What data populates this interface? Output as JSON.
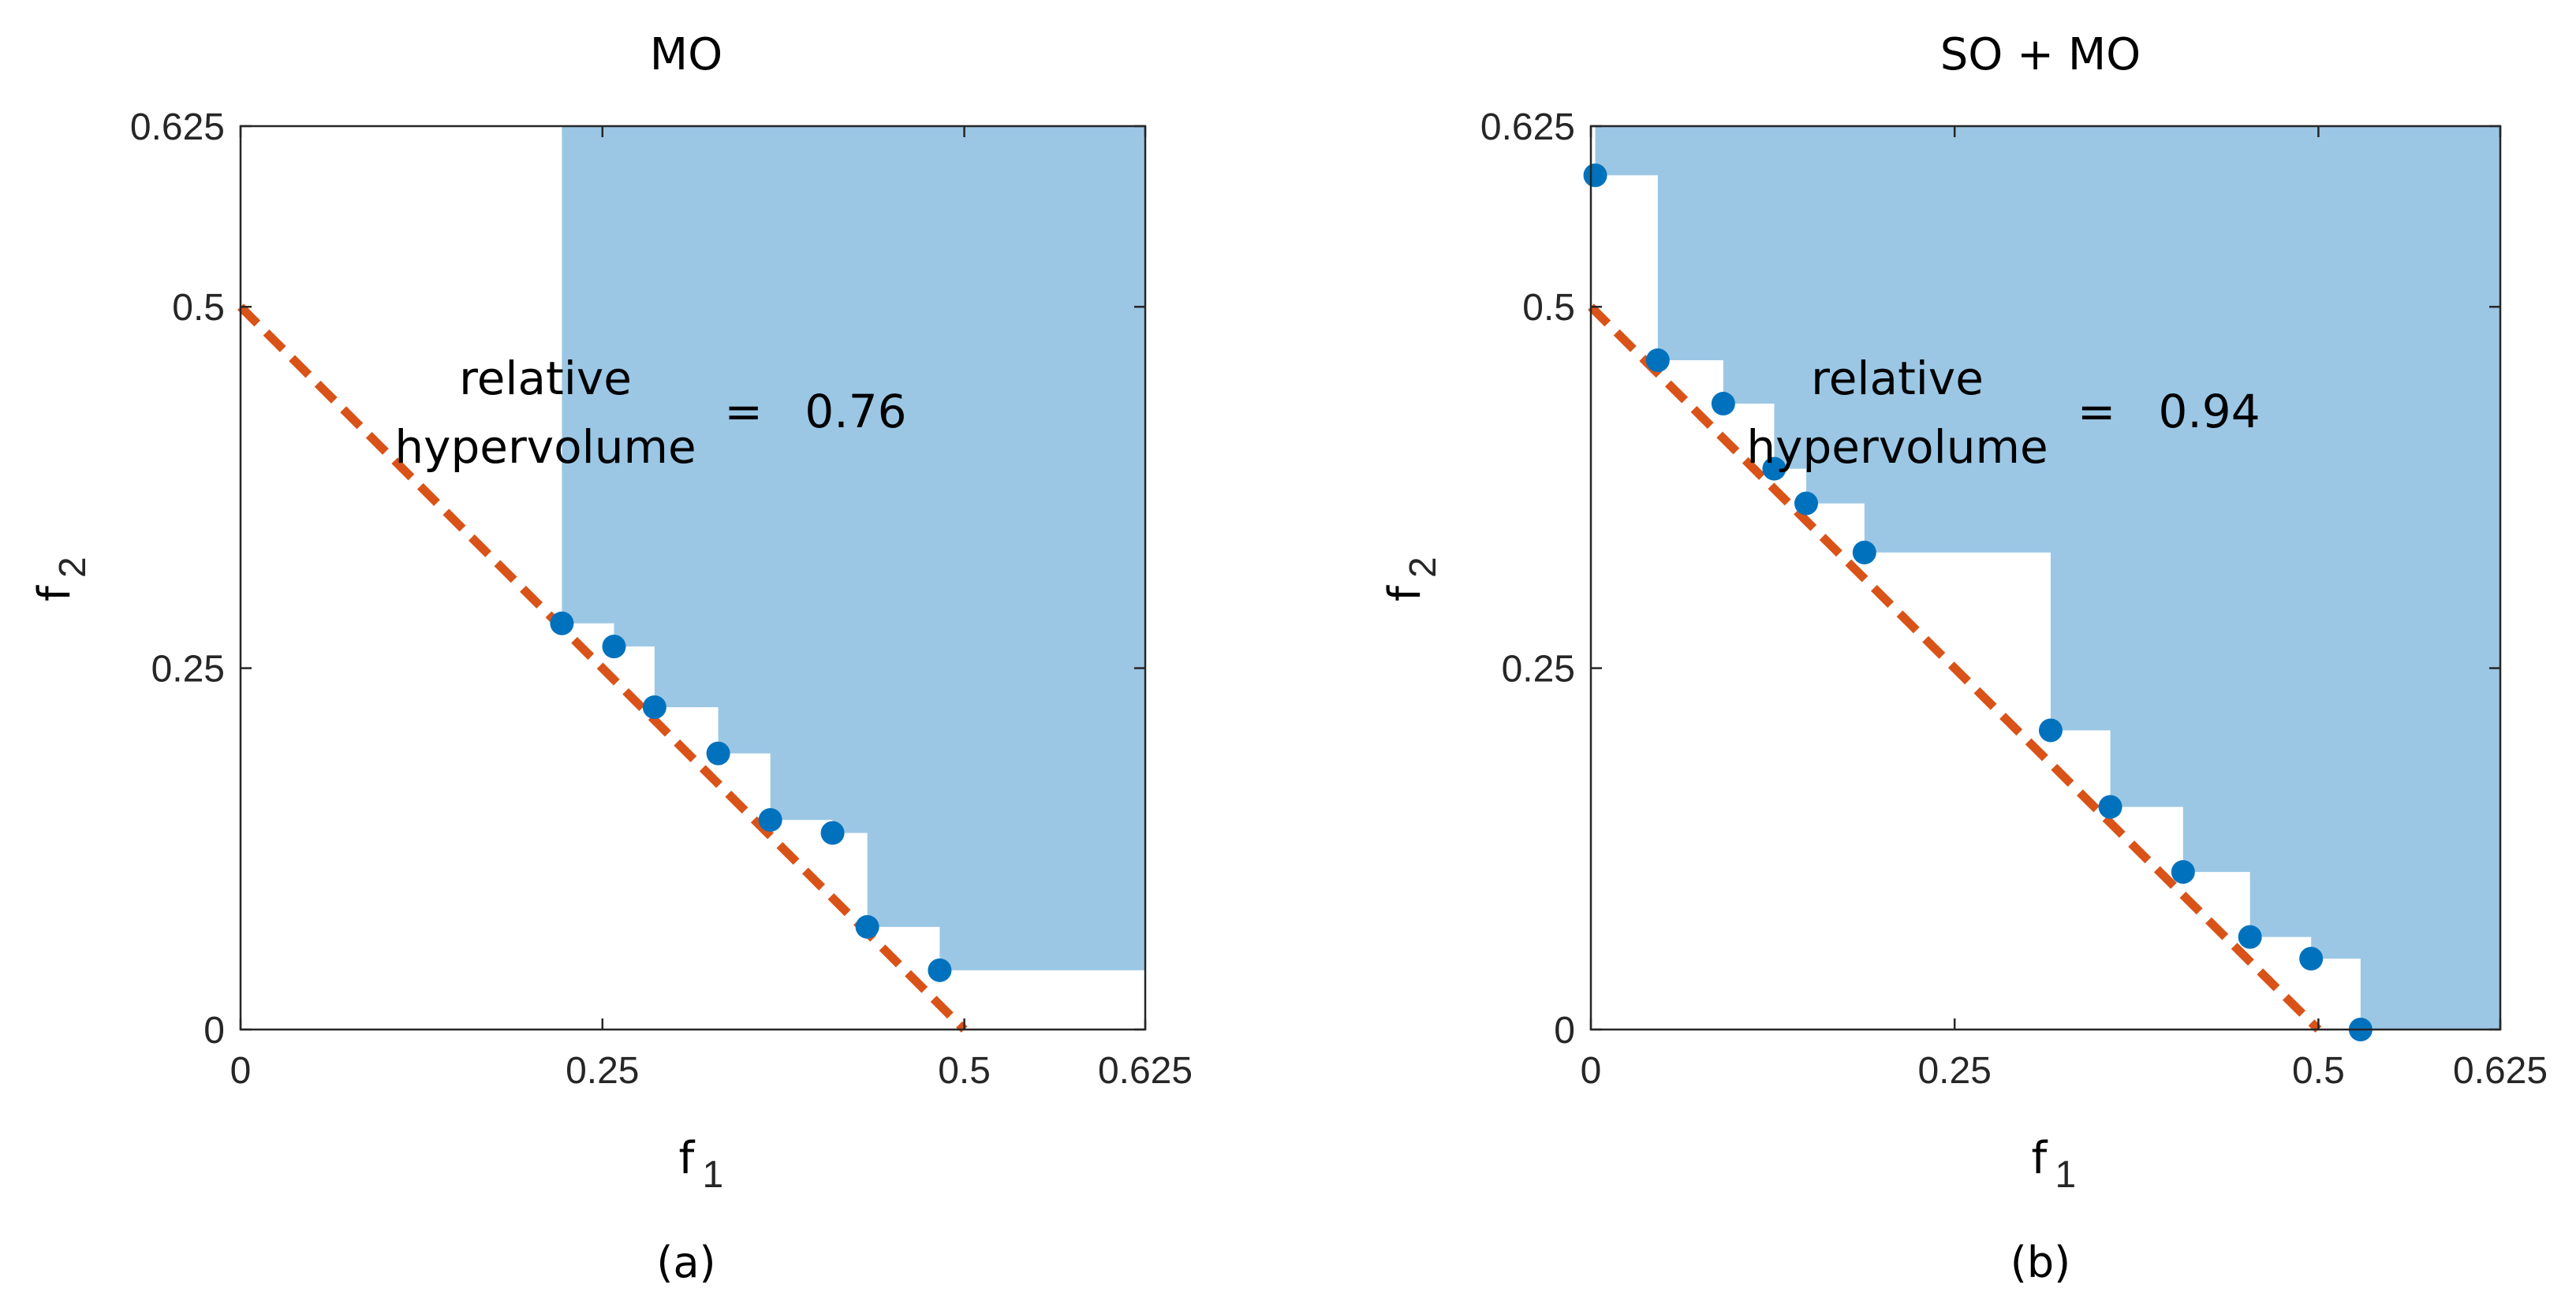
{
  "chart_data": [
    {
      "type": "scatter",
      "title": "MO",
      "xlabel": "f",
      "xlabel_sub": "1",
      "ylabel": "f",
      "ylabel_sub": "2",
      "xlim": [
        0,
        0.625
      ],
      "ylim": [
        0,
        0.625
      ],
      "xticks": [
        0,
        0.25,
        0.5,
        0.625
      ],
      "xtick_labels": [
        "0",
        "0.25",
        "0.5",
        "0.625"
      ],
      "yticks": [
        0,
        0.25,
        0.5,
        0.625
      ],
      "ytick_labels": [
        "0",
        "0.25",
        "0.5",
        "0.625"
      ],
      "reference_line": {
        "x": [
          0,
          0.5
        ],
        "y": [
          0.5,
          0
        ],
        "style": "dashed",
        "color": "#D95319"
      },
      "points": {
        "x": [
          0.222,
          0.258,
          0.286,
          0.33,
          0.366,
          0.409,
          0.433,
          0.483
        ],
        "y": [
          0.281,
          0.265,
          0.223,
          0.191,
          0.145,
          0.136,
          0.071,
          0.041
        ],
        "color": "#0072BD"
      },
      "hypervolume_region_color": "#9BC7E5",
      "annotation": {
        "line1": "relative",
        "line2": "hypervolume",
        "eq": "=",
        "value": "0.76"
      },
      "caption": "(a)"
    },
    {
      "type": "scatter",
      "title": "SO + MO",
      "xlabel": "f",
      "xlabel_sub": "1",
      "ylabel": "f",
      "ylabel_sub": "2",
      "xlim": [
        0,
        0.625
      ],
      "ylim": [
        0,
        0.625
      ],
      "xticks": [
        0,
        0.25,
        0.5,
        0.625
      ],
      "xtick_labels": [
        "0",
        "0.25",
        "0.5",
        "0.625"
      ],
      "yticks": [
        0,
        0.25,
        0.5,
        0.625
      ],
      "ytick_labels": [
        "0",
        "0.25",
        "0.5",
        "0.625"
      ],
      "reference_line": {
        "x": [
          0,
          0.5
        ],
        "y": [
          0.5,
          0
        ],
        "style": "dashed",
        "color": "#D95319"
      },
      "points": {
        "x": [
          0.003,
          0.046,
          0.091,
          0.126,
          0.148,
          0.188,
          0.316,
          0.357,
          0.407,
          0.453,
          0.495,
          0.529
        ],
        "y": [
          0.591,
          0.463,
          0.433,
          0.388,
          0.364,
          0.33,
          0.207,
          0.154,
          0.109,
          0.064,
          0.049,
          0.0
        ],
        "color": "#0072BD"
      },
      "hypervolume_region_color": "#9BC7E5",
      "annotation": {
        "line1": "relative",
        "line2": "hypervolume",
        "eq": "=",
        "value": "0.94"
      },
      "caption": "(b)"
    }
  ]
}
